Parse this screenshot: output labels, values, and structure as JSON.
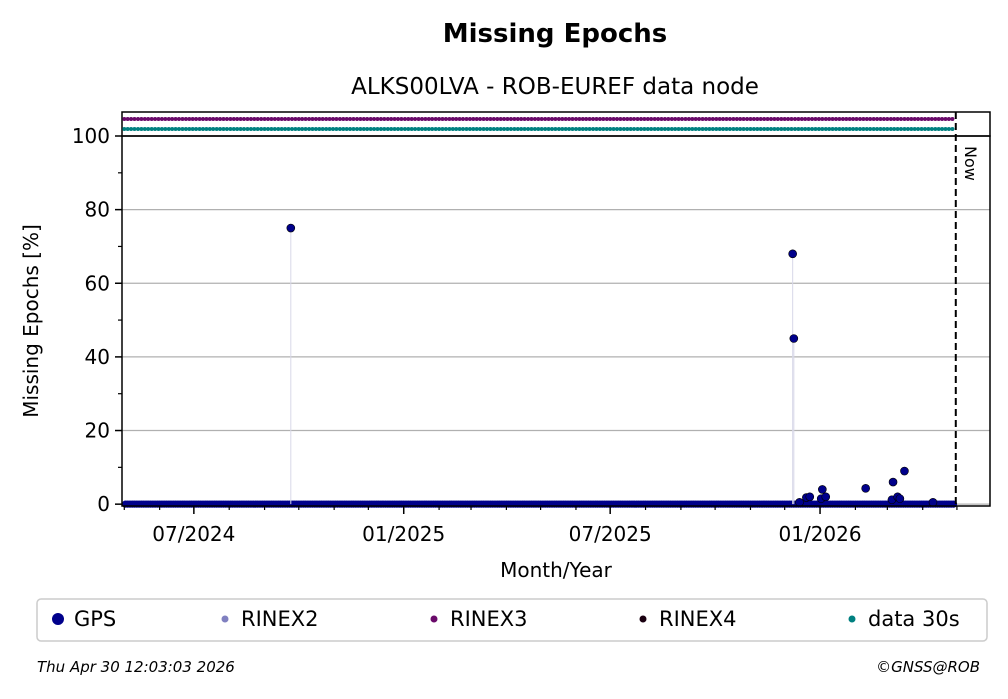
{
  "chart_data": {
    "type": "scatter",
    "title": "Missing Epochs",
    "subtitle": "ALKS00LVA - ROB-EUREF data node",
    "xlabel": "Month/Year",
    "ylabel": "Missing Epochs [%]",
    "ylim": [
      -0.5,
      100
    ],
    "xlim": [
      "2024-04-29",
      "2026-05-30"
    ],
    "x_tick_labels": [
      "07/2024",
      "01/2025",
      "07/2025",
      "01/2026"
    ],
    "y_tick_labels": [
      "0",
      "20",
      "40",
      "60",
      "80",
      "100"
    ],
    "y_ticks": [
      0,
      20,
      40,
      60,
      80,
      100
    ],
    "grid": "horizontal",
    "now_line": {
      "date": "2026-04-30",
      "label": "Now"
    },
    "availability_strip": {
      "start": "2024-04-29",
      "end": "2026-04-30",
      "rows": [
        {
          "name": "RINEX3",
          "color": "#6a0a6a"
        },
        {
          "name": "data 30s",
          "color": "#008080"
        }
      ]
    },
    "baseline": {
      "name": "GPS",
      "start": "2024-04-29",
      "end": "2026-04-30",
      "value": 0
    },
    "series": [
      {
        "name": "GPS",
        "color": "#00008b",
        "points": [
          {
            "x": "2024-09-24",
            "y": 75
          },
          {
            "x": "2025-12-08",
            "y": 68
          },
          {
            "x": "2025-12-09",
            "y": 45
          },
          {
            "x": "2025-12-14",
            "y": 0.5
          },
          {
            "x": "2025-12-20",
            "y": 1.8
          },
          {
            "x": "2025-12-23",
            "y": 2
          },
          {
            "x": "2026-01-02",
            "y": 1.5
          },
          {
            "x": "2026-01-03",
            "y": 4
          },
          {
            "x": "2026-01-06",
            "y": 2
          },
          {
            "x": "2026-02-10",
            "y": 4.3
          },
          {
            "x": "2026-03-05",
            "y": 1.2
          },
          {
            "x": "2026-03-06",
            "y": 6
          },
          {
            "x": "2026-03-10",
            "y": 2
          },
          {
            "x": "2026-03-12",
            "y": 1.5
          },
          {
            "x": "2026-03-16",
            "y": 9
          },
          {
            "x": "2026-04-10",
            "y": 0.5
          }
        ]
      }
    ]
  },
  "legend": [
    {
      "label": "GPS",
      "color": "#00008b",
      "size": "large"
    },
    {
      "label": "RINEX2",
      "color": "#8080c0",
      "size": "small"
    },
    {
      "label": "RINEX3",
      "color": "#6a0a6a",
      "size": "small"
    },
    {
      "label": "RINEX4",
      "color": "#1a0010",
      "size": "small"
    },
    {
      "label": "data 30s",
      "color": "#008080",
      "size": "small"
    }
  ],
  "footer": {
    "timestamp": "Thu Apr 30 12:03:03 2026",
    "copyright": "©GNSS@ROB"
  }
}
